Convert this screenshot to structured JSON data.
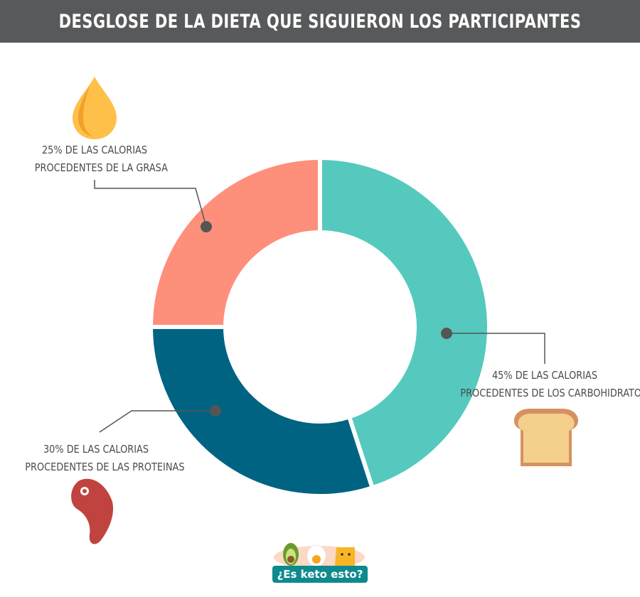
{
  "header": {
    "title": "DESGLOSE DE LA DIETA QUE SIGUIERON LOS PARTICIPANTES"
  },
  "chart_data": {
    "type": "pie",
    "title": "DESGLOSE DE LA DIETA QUE SIGUIERON LOS PARTICIPANTES",
    "categories": [
      "Grasa",
      "Carbohidratos",
      "Proteinas"
    ],
    "values": [
      25,
      45,
      30
    ],
    "unit": "%",
    "colors": [
      "#fe8f7a",
      "#56c9be",
      "#006382"
    ],
    "annotations": [
      {
        "line1": "25% DE LAS CALORIAS",
        "line2": "PROCEDENTES DE LA GRASA",
        "icon": "oil-drop-icon"
      },
      {
        "line1": "45% DE LAS CALORIAS",
        "line2": "PROCEDENTES DE LOS CARBOHIDRATOS",
        "icon": "bread-icon"
      },
      {
        "line1": "30% DE LAS CALORIAS",
        "line2": "PROCEDENTES DE LAS PROTEINAS",
        "icon": "steak-icon"
      }
    ]
  },
  "logo": {
    "text": "¿Es keto esto?",
    "icon": "keto-mascots-icon"
  }
}
